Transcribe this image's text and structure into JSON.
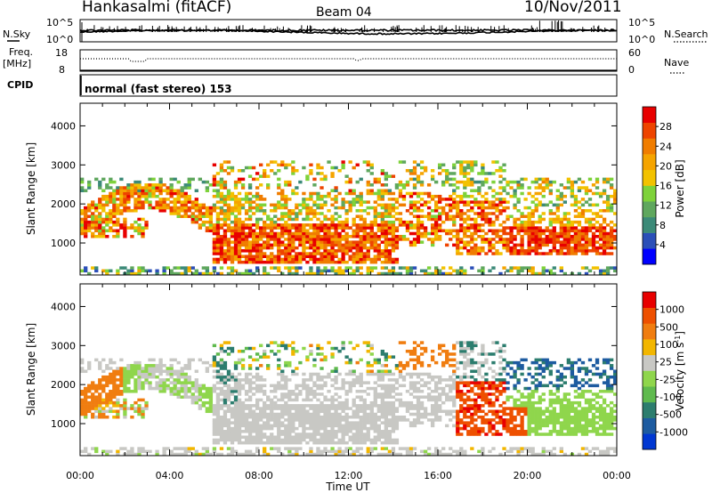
{
  "header": {
    "station": "Hankasalmi (fitACF)",
    "beam": "Beam 04",
    "date": "10/Nov/2011"
  },
  "strip_panels": {
    "nsky_label": "N.Sky",
    "nsearch_label": "N.Search",
    "noise_ticks_left": [
      "10^5",
      "10^0"
    ],
    "noise_ticks_right": [
      "10^5",
      "10^0"
    ],
    "freq_label": "Freq.",
    "freq_unit": "[MHz]",
    "freq_ticks": [
      "18",
      "8"
    ],
    "nave_label": "Nave",
    "nave_ticks": [
      "60",
      "0"
    ],
    "cpid_label": "CPID",
    "cpid_text": "normal (fast stereo) 153"
  },
  "chart_data": [
    {
      "type": "heatmap",
      "title": "",
      "xlabel": "Time UT",
      "ylabel": "Slant Range [km]",
      "x_ticks": [
        "00:00",
        "04:00",
        "08:00",
        "12:00",
        "16:00",
        "20:00",
        "00:00"
      ],
      "x_range_hours": [
        0,
        24
      ],
      "y_ticks": [
        1000,
        2000,
        3000,
        4000
      ],
      "ylim": [
        180,
        4580
      ],
      "colorbar": {
        "label": "Power [dB]",
        "ticks": [
          "28",
          "24",
          "20",
          "16",
          "12",
          "8",
          "4"
        ],
        "colors": [
          "#0000ff",
          "#2b4fb8",
          "#3c8a78",
          "#5fa75e",
          "#7ed23a",
          "#f2c200",
          "#f5a400",
          "#f07d00",
          "#ee4400",
          "#e80000"
        ]
      }
    },
    {
      "type": "heatmap",
      "title": "",
      "xlabel": "Time UT",
      "ylabel": "Slant Range [km]",
      "x_ticks": [
        "00:00",
        "04:00",
        "08:00",
        "12:00",
        "16:00",
        "20:00",
        "00:00"
      ],
      "x_range_hours": [
        0,
        24
      ],
      "y_ticks": [
        1000,
        2000,
        3000,
        4000
      ],
      "ylim": [
        180,
        4580
      ],
      "colorbar": {
        "label": "Velocity [m s",
        "label_sup": "-1",
        "label_end": "]",
        "ticks": [
          "1000",
          "500",
          "100",
          "25",
          "-25",
          "-100",
          "-500",
          "-1000"
        ],
        "colors": [
          "#0037d2",
          "#1d5ba0",
          "#2c7d6e",
          "#5fba4e",
          "#8fd64c",
          "#c8c8c4",
          "#f2b600",
          "#f07d10",
          "#ee5000",
          "#e80000"
        ]
      },
      "ground_scatter_color": "#c8c8c4"
    }
  ]
}
